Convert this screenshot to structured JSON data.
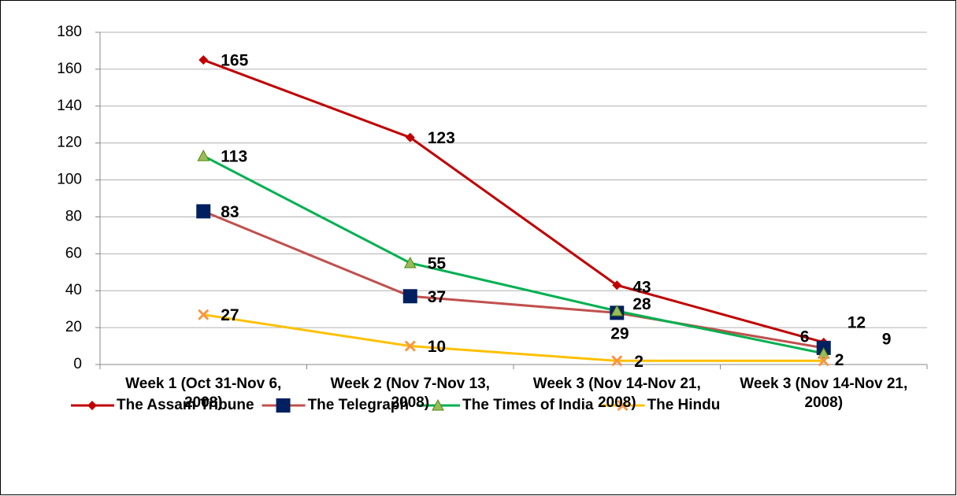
{
  "chart_data": {
    "type": "line",
    "categories": [
      "Week 1 (Oct 31-Nov 6, 2008)",
      "Week 2 (Nov 7-Nov 13, 2008)",
      "Week 3 (Nov 14-Nov 21, 2008)",
      "Week 3 (Nov 14-Nov 21, 2008)"
    ],
    "series": [
      {
        "name": "The Assam Tribune",
        "color": "#c00000",
        "line_color": "#c00000",
        "marker": "diamond",
        "values": [
          165,
          123,
          43,
          12
        ]
      },
      {
        "name": "The Telegraph",
        "color": "#002060",
        "line_color": "#c0504d",
        "marker": "square",
        "values": [
          83,
          37,
          28,
          9
        ]
      },
      {
        "name": "The Times of India",
        "color": "#9bbb59",
        "line_color": "#00b050",
        "marker": "triangle",
        "values": [
          113,
          55,
          29,
          6
        ]
      },
      {
        "name": "The Hindu",
        "color": "#f79646",
        "line_color": "#ffc000",
        "marker": "x",
        "values": [
          27,
          10,
          2,
          2
        ]
      }
    ],
    "ylim": [
      0,
      180
    ],
    "yticks": [
      0,
      20,
      40,
      60,
      80,
      100,
      120,
      140,
      160,
      180
    ],
    "grid": true,
    "legend": "bottom"
  }
}
